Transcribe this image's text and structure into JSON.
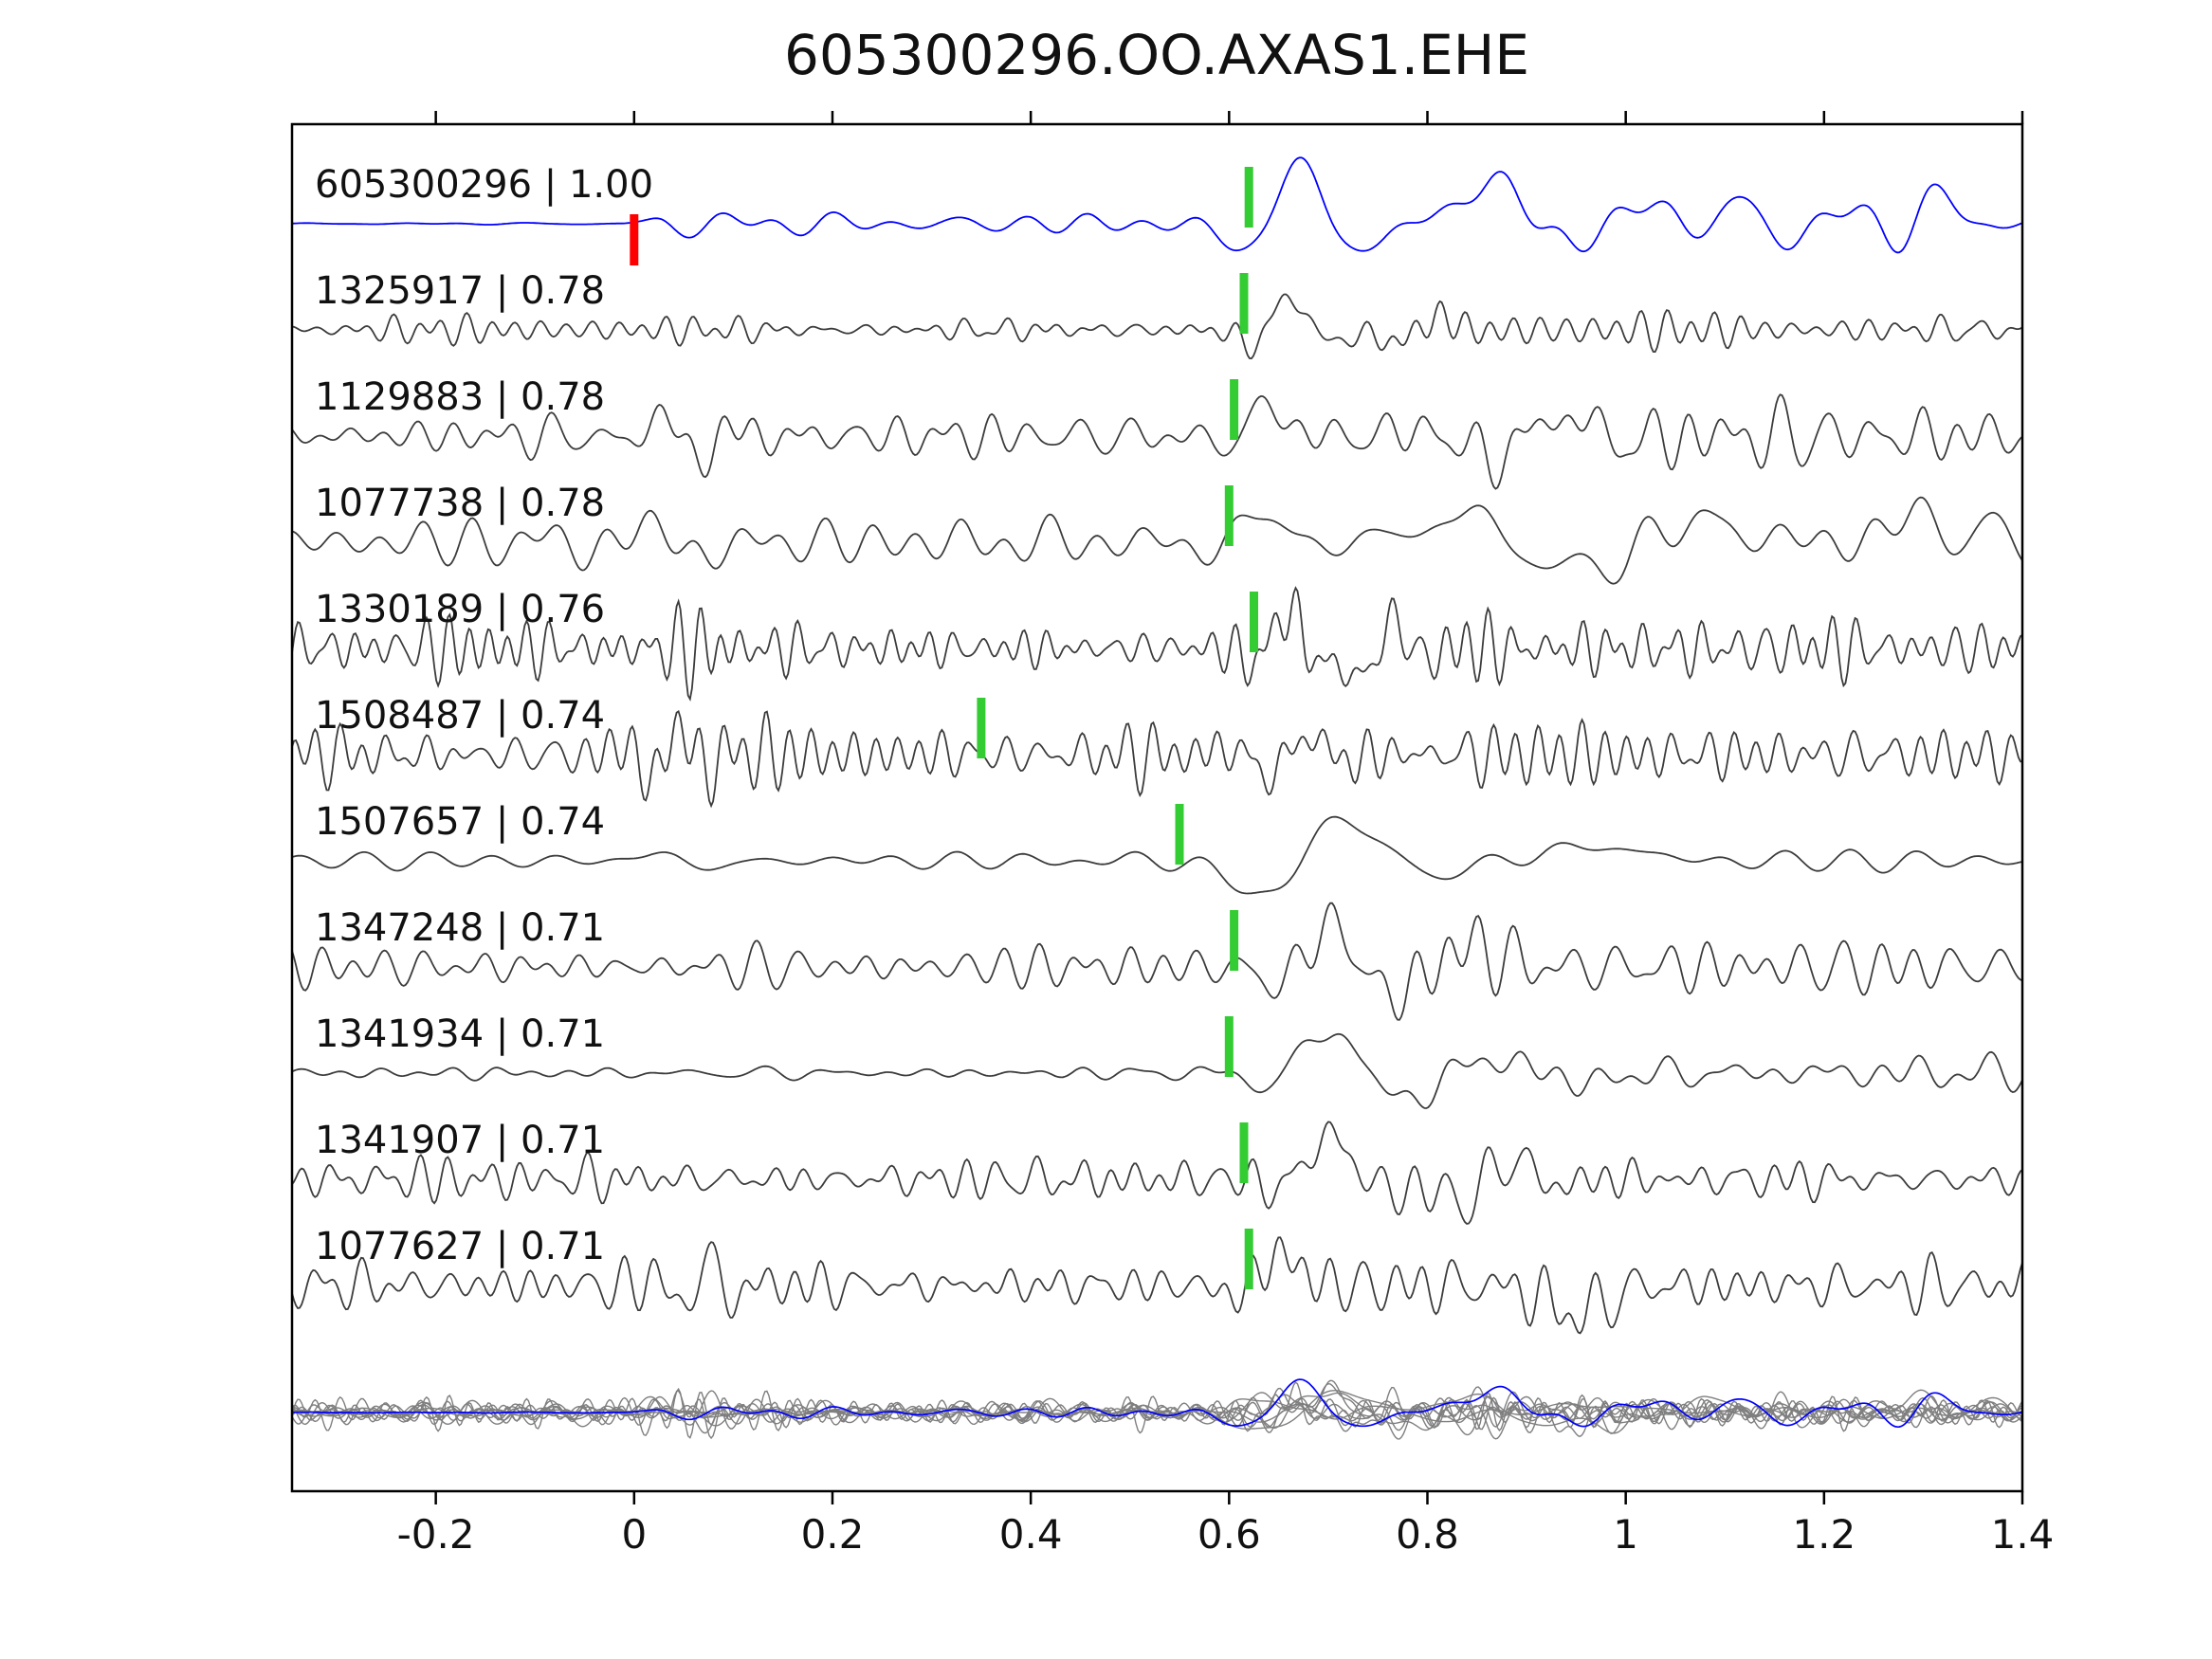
{
  "chart_data": {
    "type": "line",
    "title": "605300296.OO.AXAS1.EHE",
    "xlabel": "",
    "ylabel": "",
    "xlim": [
      -0.345,
      1.4
    ],
    "grid": false,
    "legend": null,
    "x_ticks": [
      -0.2,
      0,
      0.2,
      0.4,
      0.6,
      0.8,
      1,
      1.2,
      1.4
    ],
    "x_tick_labels": [
      "-0.2",
      "0",
      "0.2",
      "0.4",
      "0.6",
      "0.8",
      "1",
      "1.2",
      "1.4"
    ],
    "colors": {
      "template": "#0000ff",
      "match": "#3c3c3c",
      "overlay": "#7f7f7f",
      "pick": "#33cc33",
      "origin": "#ff0000",
      "axis": "#000000",
      "text": "#111111",
      "background": "#ffffff"
    },
    "traces": [
      {
        "id": "605300296",
        "cc": "1.00",
        "label": "605300296 | 1.00",
        "role": "template",
        "markers": [
          {
            "t": 0.0,
            "kind": "origin"
          },
          {
            "t": 0.62,
            "kind": "pick"
          }
        ],
        "synth": {
          "seed": 11,
          "freq": [
            8,
            20
          ],
          "n": 10,
          "env": [
            [
              -0.345,
              0.6
            ],
            [
              -0.01,
              0.6
            ],
            [
              0.03,
              7
            ],
            [
              0.55,
              7.5
            ],
            [
              0.7,
              15
            ],
            [
              1.4,
              14
            ]
          ],
          "events": [
            {
              "t0": 0.615,
              "amp": -30,
              "f": 0,
              "w": 0.032
            },
            {
              "t0": 0.665,
              "amp": 55,
              "f": 0,
              "w": 0.034
            },
            {
              "t0": 0.745,
              "amp": -20,
              "f": 0,
              "w": 0.04
            },
            {
              "t0": 0.86,
              "amp": 48,
              "f": 0,
              "w": 0.04
            },
            {
              "t0": 0.93,
              "amp": -16,
              "f": 0,
              "w": 0.035
            },
            {
              "t0": 1.05,
              "amp": 14,
              "f": 0,
              "w": 0.05
            },
            {
              "t0": 1.32,
              "amp": 13,
              "f": 0,
              "w": 0.05
            }
          ]
        }
      },
      {
        "id": "1325917",
        "cc": "0.78",
        "label": "1325917 | 0.78",
        "role": "match",
        "markers": [
          {
            "t": 0.615,
            "kind": "pick"
          }
        ],
        "synth": {
          "seed": 2,
          "freq": [
            20,
            45
          ],
          "n": 12,
          "env": [
            [
              -0.345,
              7
            ],
            [
              0.55,
              7
            ],
            [
              0.63,
              9
            ],
            [
              1.4,
              8
            ]
          ],
          "events": [
            {
              "t0": 0.625,
              "amp": -20,
              "f": 0,
              "w": 0.02
            },
            {
              "t0": 0.66,
              "amp": 36,
              "f": 0,
              "w": 0.025
            },
            {
              "t0": 0.705,
              "amp": -14,
              "f": 0,
              "w": 0.03
            },
            {
              "t0": 0.79,
              "amp": 16,
              "f": 9,
              "w": 0.05
            }
          ]
        }
      },
      {
        "id": "1129883",
        "cc": "0.78",
        "label": "1129883 | 0.78",
        "role": "match",
        "markers": [
          {
            "t": 0.605,
            "kind": "pick"
          }
        ],
        "synth": {
          "seed": 3,
          "freq": [
            14,
            34
          ],
          "n": 12,
          "env": [
            [
              -0.345,
              13
            ],
            [
              0.5,
              13
            ],
            [
              0.62,
              15
            ],
            [
              0.7,
              20
            ],
            [
              1.4,
              18
            ]
          ],
          "events": [
            {
              "t0": 0.045,
              "amp": -32,
              "f": 13,
              "w": 0.045
            },
            {
              "t0": 0.6,
              "amp": -16,
              "f": 0,
              "w": 0.02
            },
            {
              "t0": 0.635,
              "amp": 32,
              "f": 0,
              "w": 0.028
            },
            {
              "t0": 0.9,
              "amp": 24,
              "f": 6,
              "w": 0.1
            }
          ]
        }
      },
      {
        "id": "1077738",
        "cc": "0.78",
        "label": "1077738 | 0.78",
        "role": "match",
        "markers": [
          {
            "t": 0.6,
            "kind": "pick"
          }
        ],
        "synth": {
          "seed": 4,
          "freq": [
            9,
            24
          ],
          "n": 11,
          "env": [
            [
              -0.345,
              12
            ],
            [
              0.5,
              12
            ],
            [
              0.68,
              18
            ],
            [
              1.4,
              18
            ]
          ],
          "events": [
            {
              "t0": 0.05,
              "amp": -30,
              "f": 10,
              "w": 0.05
            },
            {
              "t0": 0.59,
              "amp": -16,
              "f": 0,
              "w": 0.025
            },
            {
              "t0": 0.625,
              "amp": 34,
              "f": 0,
              "w": 0.03
            },
            {
              "t0": 0.83,
              "amp": 28,
              "f": 0,
              "w": 0.05
            },
            {
              "t0": 0.95,
              "amp": -32,
              "f": 0,
              "w": 0.05
            },
            {
              "t0": 1.08,
              "amp": 22,
              "f": 0,
              "w": 0.05
            },
            {
              "t0": 1.3,
              "amp": 24,
              "f": 0,
              "w": 0.05
            }
          ]
        }
      },
      {
        "id": "1330189",
        "cc": "0.76",
        "label": "1330189 | 0.76",
        "role": "match",
        "markers": [
          {
            "t": 0.625,
            "kind": "pick"
          }
        ],
        "synth": {
          "seed": 5,
          "freq": [
            24,
            55
          ],
          "n": 14,
          "env": [
            [
              -0.345,
              15
            ],
            [
              0.3,
              13
            ],
            [
              0.5,
              9
            ],
            [
              0.6,
              10
            ],
            [
              0.68,
              18
            ],
            [
              1.4,
              13
            ]
          ],
          "events": [
            {
              "t0": 0.625,
              "amp": -18,
              "f": 0,
              "w": 0.015
            },
            {
              "t0": 0.66,
              "amp": 42,
              "f": 0,
              "w": 0.02
            },
            {
              "t0": 0.7,
              "amp": -28,
              "f": 0,
              "w": 0.025
            },
            {
              "t0": 0.75,
              "amp": 30,
              "f": 14,
              "w": 0.05
            }
          ]
        }
      },
      {
        "id": "1508487",
        "cc": "0.74",
        "label": "1508487 | 0.74",
        "role": "match",
        "markers": [
          {
            "t": 0.35,
            "kind": "pick"
          }
        ],
        "synth": {
          "seed": 6,
          "freq": [
            22,
            50
          ],
          "n": 14,
          "env": [
            [
              -0.345,
              15
            ],
            [
              1.4,
              14
            ]
          ],
          "events": [
            {
              "t0": 0.03,
              "amp": 28,
              "f": 16,
              "w": 0.05
            },
            {
              "t0": 0.66,
              "amp": 22,
              "f": 11,
              "w": 0.06
            }
          ]
        }
      },
      {
        "id": "1507657",
        "cc": "0.74",
        "label": "1507657 | 0.74",
        "role": "match",
        "markers": [
          {
            "t": 0.55,
            "kind": "pick"
          }
        ],
        "synth": {
          "seed": 7,
          "freq": [
            7,
            17
          ],
          "n": 10,
          "env": [
            [
              -0.345,
              6
            ],
            [
              0.45,
              7
            ],
            [
              0.8,
              8
            ],
            [
              1.4,
              8
            ]
          ],
          "events": [
            {
              "t0": 0.05,
              "amp": -14,
              "f": 8,
              "w": 0.05
            },
            {
              "t0": 0.635,
              "amp": -40,
              "f": 0,
              "w": 0.042
            },
            {
              "t0": 0.715,
              "amp": 48,
              "f": 0,
              "w": 0.045
            },
            {
              "t0": 0.8,
              "amp": -14,
              "f": 0,
              "w": 0.05
            },
            {
              "t0": 0.97,
              "amp": 16,
              "f": 0,
              "w": 0.06
            }
          ]
        }
      },
      {
        "id": "1347248",
        "cc": "0.71",
        "label": "1347248 | 0.71",
        "role": "match",
        "markers": [
          {
            "t": 0.605,
            "kind": "pick"
          }
        ],
        "synth": {
          "seed": 8,
          "freq": [
            17,
            40
          ],
          "n": 13,
          "env": [
            [
              -0.345,
              11
            ],
            [
              0.58,
              12
            ],
            [
              0.75,
              20
            ],
            [
              1.4,
              17
            ]
          ],
          "events": [
            {
              "t0": 0.655,
              "amp": -26,
              "f": 0,
              "w": 0.025
            },
            {
              "t0": 0.7,
              "amp": 46,
              "f": 0,
              "w": 0.035
            },
            {
              "t0": 0.765,
              "amp": -30,
              "f": 0,
              "w": 0.04
            },
            {
              "t0": 0.84,
              "amp": 22,
              "f": 0,
              "w": 0.04
            }
          ]
        }
      },
      {
        "id": "1341934",
        "cc": "0.71",
        "label": "1341934 | 0.71",
        "role": "match",
        "markers": [
          {
            "t": 0.6,
            "kind": "pick"
          }
        ],
        "synth": {
          "seed": 9,
          "freq": [
            11,
            28
          ],
          "n": 11,
          "env": [
            [
              -0.345,
              4
            ],
            [
              0.3,
              5
            ],
            [
              0.55,
              6
            ],
            [
              0.65,
              9
            ],
            [
              0.75,
              13
            ],
            [
              1.4,
              10
            ]
          ],
          "events": [
            {
              "t0": 0.645,
              "amp": -20,
              "f": 0,
              "w": 0.025
            },
            {
              "t0": 0.7,
              "amp": 48,
              "f": 0,
              "w": 0.04
            },
            {
              "t0": 0.775,
              "amp": -28,
              "f": 0,
              "w": 0.045
            },
            {
              "t0": 0.87,
              "amp": 16,
              "f": 0,
              "w": 0.05
            },
            {
              "t0": 0.95,
              "amp": -10,
              "f": 0,
              "w": 0.05
            }
          ]
        }
      },
      {
        "id": "1341907",
        "cc": "0.71",
        "label": "1341907 | 0.71",
        "role": "match",
        "markers": [
          {
            "t": 0.615,
            "kind": "pick"
          }
        ],
        "synth": {
          "seed": 10,
          "freq": [
            18,
            42
          ],
          "n": 13,
          "env": [
            [
              -0.345,
              11
            ],
            [
              0.58,
              11
            ],
            [
              0.72,
              15
            ],
            [
              1.4,
              13
            ]
          ],
          "events": [
            {
              "t0": 0.655,
              "amp": -16,
              "f": 0,
              "w": 0.02
            },
            {
              "t0": 0.7,
              "amp": 44,
              "f": 0,
              "w": 0.033
            },
            {
              "t0": 0.775,
              "amp": -18,
              "f": 0,
              "w": 0.04
            },
            {
              "t0": 0.86,
              "amp": 24,
              "f": 9,
              "w": 0.07
            }
          ]
        }
      },
      {
        "id": "1077627",
        "cc": "0.71",
        "label": "1077627 | 0.71",
        "role": "match",
        "markers": [
          {
            "t": 0.62,
            "kind": "pick"
          }
        ],
        "synth": {
          "seed": 12,
          "freq": [
            20,
            46
          ],
          "n": 14,
          "env": [
            [
              -0.345,
              14
            ],
            [
              0.55,
              15
            ],
            [
              0.68,
              18
            ],
            [
              1.4,
              17
            ]
          ],
          "events": [
            {
              "t0": 0.06,
              "amp": 28,
              "f": 17,
              "w": 0.05
            },
            {
              "t0": 0.61,
              "amp": -14,
              "f": 0,
              "w": 0.02
            },
            {
              "t0": 0.65,
              "amp": 32,
              "f": 0,
              "w": 0.028
            },
            {
              "t0": 0.95,
              "amp": -30,
              "f": 0,
              "w": 0.04
            }
          ]
        }
      }
    ],
    "overlay": {
      "description": "all matched traces overlaid in gray with the blue template on top",
      "includes_template": true,
      "scale": 0.5
    }
  }
}
